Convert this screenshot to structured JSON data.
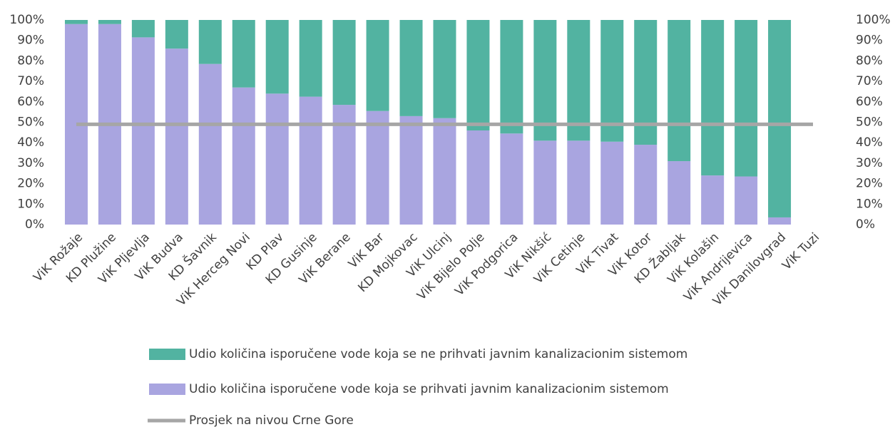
{
  "chart_data": {
    "type": "bar",
    "stacked": true,
    "categories": [
      "ViK Rožaje",
      "KD Plužine",
      "ViK Pljevlja",
      "ViK Budva",
      "KD Šavnik",
      "ViK Herceg Novi",
      "KD Plav",
      "KD Gusinje",
      "ViK Berane",
      "ViK Bar",
      "KD Mojkovac",
      "ViK Ulcinj",
      "ViK Bijelo Polje",
      "ViK Podgorica",
      "ViK Nikšić",
      "ViK Cetinje",
      "ViK Tivat",
      "ViK Kotor",
      "KD Žabljak",
      "ViK Kolašin",
      "ViK Andrijevica",
      "ViK Danilovgrad",
      "ViK Tuzi"
    ],
    "series": [
      {
        "name": "Udio količina isporučene vode koja se prihvati javnim kanalizacionim sistemom",
        "color": "#a9a5e0",
        "type": "bar",
        "values": [
          98,
          98,
          91.5,
          86,
          78.5,
          67,
          64,
          62.5,
          58.5,
          55.5,
          53,
          52,
          46,
          44.5,
          41,
          41,
          40.5,
          39,
          31,
          24,
          23.5,
          3.5,
          null
        ]
      },
      {
        "name": "Udio količina isporučene vode koja se ne prihvati javnim kanalizacionim sistemom",
        "color": "#52b3a1",
        "type": "bar",
        "values": [
          2,
          2,
          8.5,
          14,
          21.5,
          33,
          36,
          37.5,
          41.5,
          44.5,
          47,
          48,
          54,
          55.5,
          59,
          59,
          59.5,
          61,
          69,
          76,
          76.5,
          96.5,
          null
        ]
      },
      {
        "name": "Prosjek na nivou Crne Gore",
        "color": "#a6a6a6",
        "type": "line",
        "values": [
          49,
          49,
          49,
          49,
          49,
          49,
          49,
          49,
          49,
          49,
          49,
          49,
          49,
          49,
          49,
          49,
          49,
          49,
          49,
          49,
          49,
          49,
          49
        ]
      }
    ],
    "ylim": [
      0,
      100
    ],
    "yticks": [
      {
        "value": 0,
        "label": "0%"
      },
      {
        "value": 10,
        "label": "10%"
      },
      {
        "value": 20,
        "label": "20%"
      },
      {
        "value": 30,
        "label": "30%"
      },
      {
        "value": 40,
        "label": "40%"
      },
      {
        "value": 50,
        "label": "50%"
      },
      {
        "value": 60,
        "label": "60%"
      },
      {
        "value": 70,
        "label": "70%"
      },
      {
        "value": 80,
        "label": "80%"
      },
      {
        "value": 90,
        "label": "90%"
      },
      {
        "value": 100,
        "label": "100%"
      }
    ],
    "y2lim": [
      0,
      100
    ],
    "y2ticks": [
      {
        "value": 0,
        "label": "0%"
      },
      {
        "value": 10,
        "label": "10%"
      },
      {
        "value": 20,
        "label": "20%"
      },
      {
        "value": 30,
        "label": "30%"
      },
      {
        "value": 40,
        "label": "40%"
      },
      {
        "value": 50,
        "label": "50%"
      },
      {
        "value": 60,
        "label": "60%"
      },
      {
        "value": 70,
        "label": "70%"
      },
      {
        "value": 80,
        "label": "80%"
      },
      {
        "value": 90,
        "label": "90%"
      },
      {
        "value": 100,
        "label": "100%"
      }
    ],
    "legend_order": [
      1,
      0,
      2
    ]
  }
}
